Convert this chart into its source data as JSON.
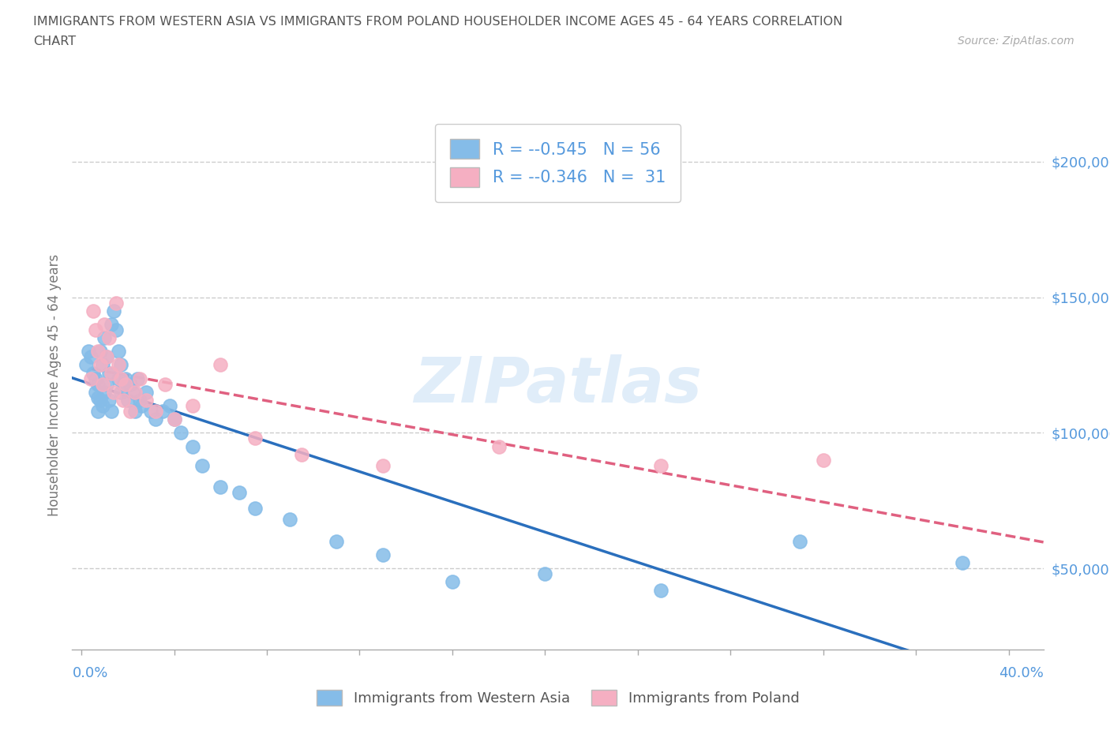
{
  "title_line1": "IMMIGRANTS FROM WESTERN ASIA VS IMMIGRANTS FROM POLAND HOUSEHOLDER INCOME AGES 45 - 64 YEARS CORRELATION",
  "title_line2": "CHART",
  "source_text": "Source: ZipAtlas.com",
  "ylabel": "Householder Income Ages 45 - 64 years",
  "legend_blue_label": "Immigrants from Western Asia",
  "legend_pink_label": "Immigrants from Poland",
  "legend_blue_r": "-0.545",
  "legend_blue_n": "56",
  "legend_pink_r": "-0.346",
  "legend_pink_n": "31",
  "ytick_values": [
    50000,
    100000,
    150000,
    200000
  ],
  "ylim_min": 20000,
  "ylim_max": 215000,
  "xlim_min": -0.004,
  "xlim_max": 0.415,
  "background_color": "#ffffff",
  "grid_color": "#cccccc",
  "blue_color": "#85bce8",
  "pink_color": "#f5afc2",
  "blue_line_color": "#2a6fbd",
  "pink_line_color": "#e06080",
  "title_color": "#555555",
  "axis_label_color": "#777777",
  "tick_color": "#5599dd",
  "western_asia_x": [
    0.002,
    0.003,
    0.004,
    0.005,
    0.006,
    0.006,
    0.007,
    0.007,
    0.007,
    0.008,
    0.008,
    0.009,
    0.009,
    0.01,
    0.01,
    0.011,
    0.011,
    0.012,
    0.012,
    0.013,
    0.013,
    0.014,
    0.015,
    0.016,
    0.016,
    0.017,
    0.017,
    0.018,
    0.019,
    0.02,
    0.021,
    0.022,
    0.023,
    0.024,
    0.025,
    0.026,
    0.028,
    0.03,
    0.032,
    0.035,
    0.038,
    0.04,
    0.043,
    0.048,
    0.052,
    0.06,
    0.068,
    0.075,
    0.09,
    0.11,
    0.13,
    0.16,
    0.2,
    0.25,
    0.31,
    0.38
  ],
  "western_asia_y": [
    125000,
    130000,
    128000,
    122000,
    120000,
    115000,
    118000,
    113000,
    108000,
    130000,
    112000,
    125000,
    110000,
    135000,
    115000,
    128000,
    118000,
    122000,
    112000,
    140000,
    108000,
    145000,
    138000,
    130000,
    120000,
    125000,
    115000,
    118000,
    120000,
    112000,
    118000,
    115000,
    108000,
    120000,
    112000,
    110000,
    115000,
    108000,
    105000,
    108000,
    110000,
    105000,
    100000,
    95000,
    88000,
    80000,
    78000,
    72000,
    68000,
    60000,
    55000,
    45000,
    48000,
    42000,
    60000,
    52000
  ],
  "poland_x": [
    0.004,
    0.005,
    0.006,
    0.007,
    0.008,
    0.009,
    0.01,
    0.011,
    0.012,
    0.013,
    0.014,
    0.015,
    0.016,
    0.017,
    0.018,
    0.019,
    0.021,
    0.023,
    0.025,
    0.028,
    0.032,
    0.036,
    0.04,
    0.048,
    0.06,
    0.075,
    0.095,
    0.13,
    0.18,
    0.25,
    0.32
  ],
  "poland_y": [
    120000,
    145000,
    138000,
    130000,
    125000,
    118000,
    140000,
    128000,
    135000,
    122000,
    115000,
    148000,
    125000,
    120000,
    112000,
    118000,
    108000,
    115000,
    120000,
    112000,
    108000,
    118000,
    105000,
    110000,
    125000,
    98000,
    92000,
    88000,
    95000,
    88000,
    90000
  ]
}
